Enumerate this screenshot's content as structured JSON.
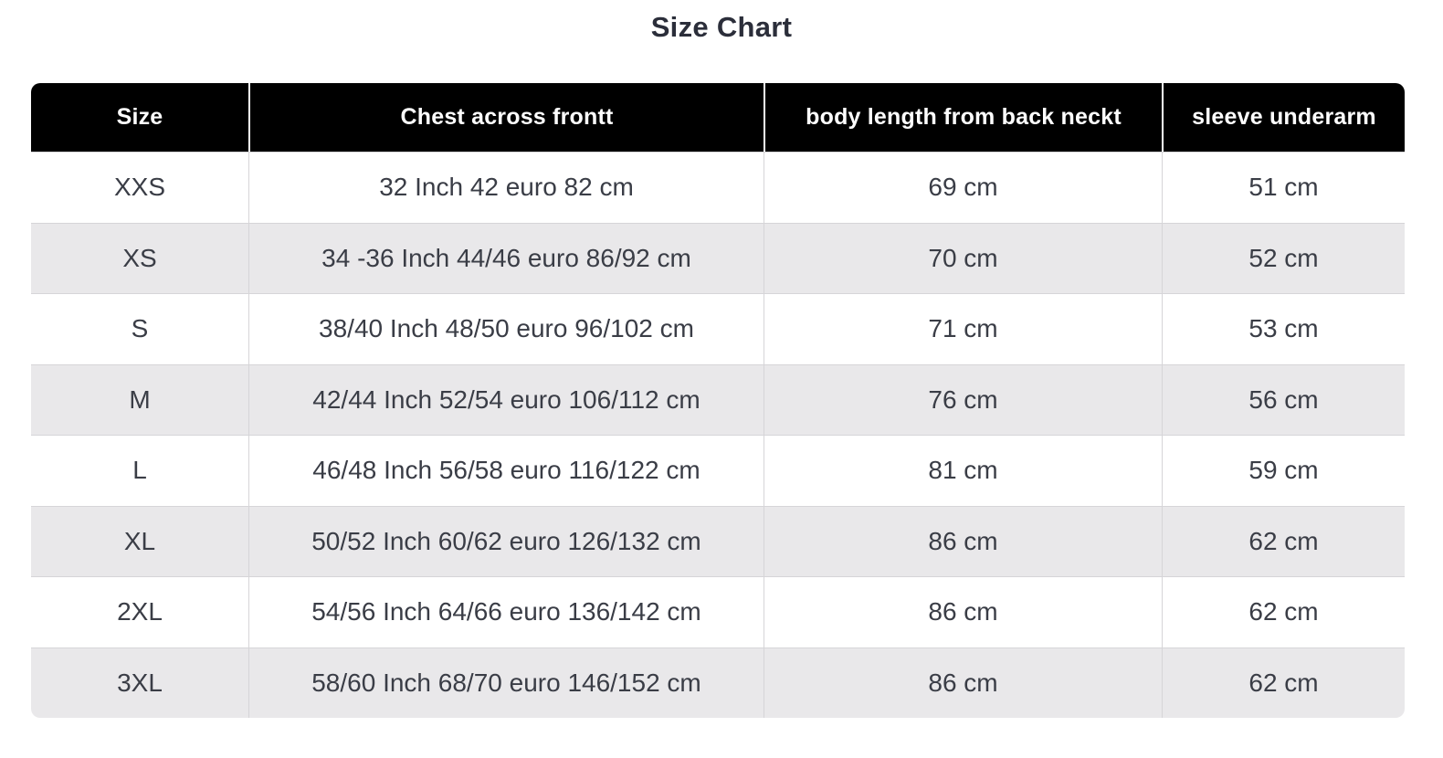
{
  "title": "Size Chart",
  "colors": {
    "header_bg": "#000000",
    "header_text": "#ffffff",
    "row_bg": "#ffffff",
    "row_alt_bg": "#e9e8ea",
    "grid_line": "#d6d5d8",
    "body_text": "#3a3d46",
    "title_text": "#2b2e3a"
  },
  "chart_data": {
    "type": "table",
    "title": "Size Chart",
    "columns": [
      "Size",
      "Chest across frontt",
      "body length from back neckt",
      "sleeve underarm"
    ],
    "rows": [
      [
        "XXS",
        "32 Inch 42 euro 82 cm",
        "69 cm",
        "51 cm"
      ],
      [
        "XS",
        "34 -36 Inch 44/46 euro 86/92 cm",
        "70 cm",
        "52 cm"
      ],
      [
        "S",
        "38/40 Inch 48/50 euro 96/102 cm",
        "71 cm",
        "53 cm"
      ],
      [
        "M",
        "42/44 Inch 52/54 euro 106/112 cm",
        "76 cm",
        "56 cm"
      ],
      [
        "L",
        "46/48 Inch 56/58 euro 116/122 cm",
        "81 cm",
        "59 cm"
      ],
      [
        "XL",
        "50/52 Inch 60/62 euro 126/132 cm",
        "86 cm",
        "62 cm"
      ],
      [
        "2XL",
        "54/56 Inch 64/66 euro 136/142 cm",
        "86 cm",
        "62 cm"
      ],
      [
        "3XL",
        "58/60 Inch 68/70 euro 146/152 cm",
        "86 cm",
        "62 cm"
      ]
    ]
  }
}
